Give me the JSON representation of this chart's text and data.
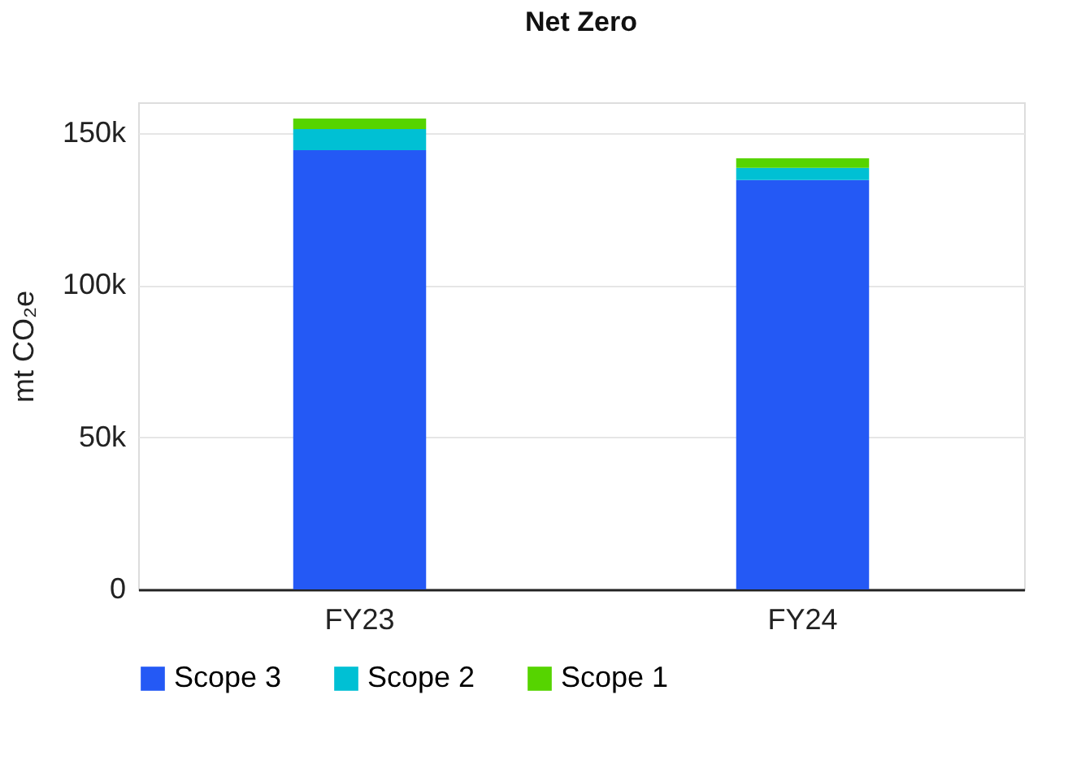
{
  "chart_data": {
    "type": "bar",
    "title": "Net Zero",
    "ylabel": "mt CO₂e",
    "categories": [
      "FY23",
      "FY24"
    ],
    "stacked": true,
    "series": [
      {
        "name": "Scope 3",
        "color": "#2459f5",
        "values": [
          144300,
          134500
        ]
      },
      {
        "name": "Scope 2",
        "color": "#00c0d4",
        "values": [
          6900,
          4000
        ]
      },
      {
        "name": "Scope 1",
        "color": "#56d400",
        "values": [
          3500,
          3100
        ]
      }
    ],
    "ylim": [
      0,
      160000
    ],
    "yticks": [
      0,
      {
        "value": 50000,
        "label": "50k"
      },
      {
        "value": 100000,
        "label": "100k"
      },
      {
        "value": 150000,
        "label": "150k"
      }
    ],
    "grid": "y",
    "legend": "bottom"
  }
}
